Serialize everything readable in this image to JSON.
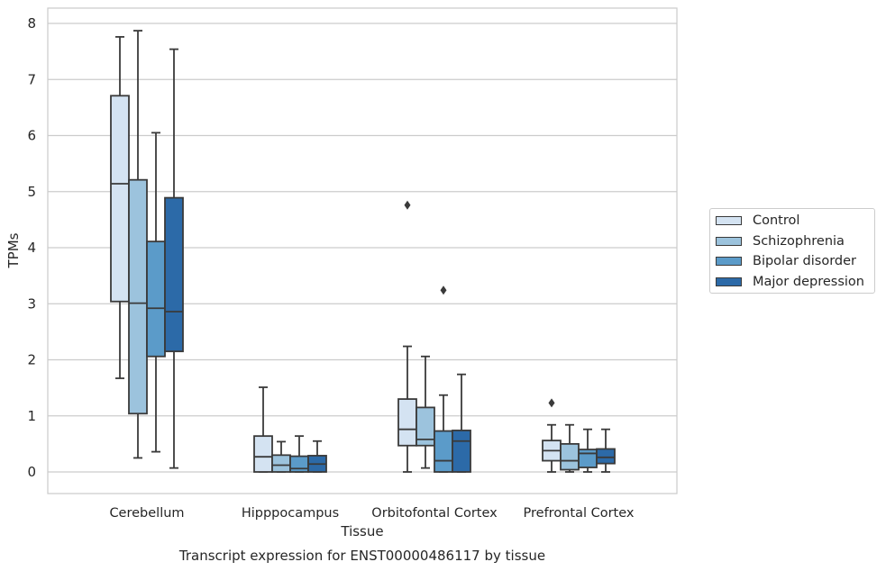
{
  "chart_data": {
    "type": "box",
    "title": "Transcript expression for ENST00000486117 by tissue",
    "xlabel": "Tissue",
    "ylabel": "TPMs",
    "ylim": [
      -0.38,
      8.28
    ],
    "yticks": [
      0,
      1,
      2,
      3,
      4,
      5,
      6,
      7,
      8
    ],
    "grid": "horizontal",
    "legend_position": "right",
    "categories": [
      "Cerebellum",
      "Hipppocampus",
      "Orbitofontal Cortex",
      "Prefrontal Cortex"
    ],
    "series": [
      {
        "name": "Control",
        "color": "#d4e3f2",
        "boxes": [
          {
            "whisker_low": 1.67,
            "q1": 3.04,
            "median": 5.14,
            "q3": 6.71,
            "whisker_high": 7.76,
            "outliers": []
          },
          {
            "whisker_low": 0.0,
            "q1": 0.0,
            "median": 0.27,
            "q3": 0.64,
            "whisker_high": 1.51,
            "outliers": []
          },
          {
            "whisker_low": 0.0,
            "q1": 0.47,
            "median": 0.76,
            "q3": 1.3,
            "whisker_high": 2.24,
            "outliers": [
              4.76
            ]
          },
          {
            "whisker_low": 0.0,
            "q1": 0.2,
            "median": 0.38,
            "q3": 0.56,
            "whisker_high": 0.84,
            "outliers": [
              1.23
            ]
          }
        ]
      },
      {
        "name": "Schizophrenia",
        "color": "#9cc3dd",
        "boxes": [
          {
            "whisker_low": 0.25,
            "q1": 1.04,
            "median": 3.01,
            "q3": 5.21,
            "whisker_high": 7.87,
            "outliers": []
          },
          {
            "whisker_low": 0.0,
            "q1": 0.0,
            "median": 0.12,
            "q3": 0.3,
            "whisker_high": 0.54,
            "outliers": []
          },
          {
            "whisker_low": 0.07,
            "q1": 0.47,
            "median": 0.58,
            "q3": 1.15,
            "whisker_high": 2.06,
            "outliers": []
          },
          {
            "whisker_low": 0.0,
            "q1": 0.04,
            "median": 0.2,
            "q3": 0.5,
            "whisker_high": 0.84,
            "outliers": []
          }
        ]
      },
      {
        "name": "Bipolar disorder",
        "color": "#5b9bc9",
        "boxes": [
          {
            "whisker_low": 0.36,
            "q1": 2.06,
            "median": 2.92,
            "q3": 4.11,
            "whisker_high": 6.05,
            "outliers": []
          },
          {
            "whisker_low": 0.0,
            "q1": 0.0,
            "median": 0.06,
            "q3": 0.28,
            "whisker_high": 0.64,
            "outliers": []
          },
          {
            "whisker_low": 0.0,
            "q1": 0.0,
            "median": 0.2,
            "q3": 0.73,
            "whisker_high": 1.37,
            "outliers": [
              3.24
            ]
          },
          {
            "whisker_low": 0.0,
            "q1": 0.08,
            "median": 0.33,
            "q3": 0.4,
            "whisker_high": 0.76,
            "outliers": []
          }
        ]
      },
      {
        "name": "Major depression",
        "color": "#2c6aa8",
        "boxes": [
          {
            "whisker_low": 0.07,
            "q1": 2.15,
            "median": 2.86,
            "q3": 4.89,
            "whisker_high": 7.54,
            "outliers": []
          },
          {
            "whisker_low": 0.0,
            "q1": 0.0,
            "median": 0.14,
            "q3": 0.29,
            "whisker_high": 0.55,
            "outliers": []
          },
          {
            "whisker_low": 0.0,
            "q1": 0.0,
            "median": 0.55,
            "q3": 0.74,
            "whisker_high": 1.74,
            "outliers": []
          },
          {
            "whisker_low": 0.0,
            "q1": 0.15,
            "median": 0.26,
            "q3": 0.41,
            "whisker_high": 0.76,
            "outliers": []
          }
        ]
      }
    ]
  }
}
